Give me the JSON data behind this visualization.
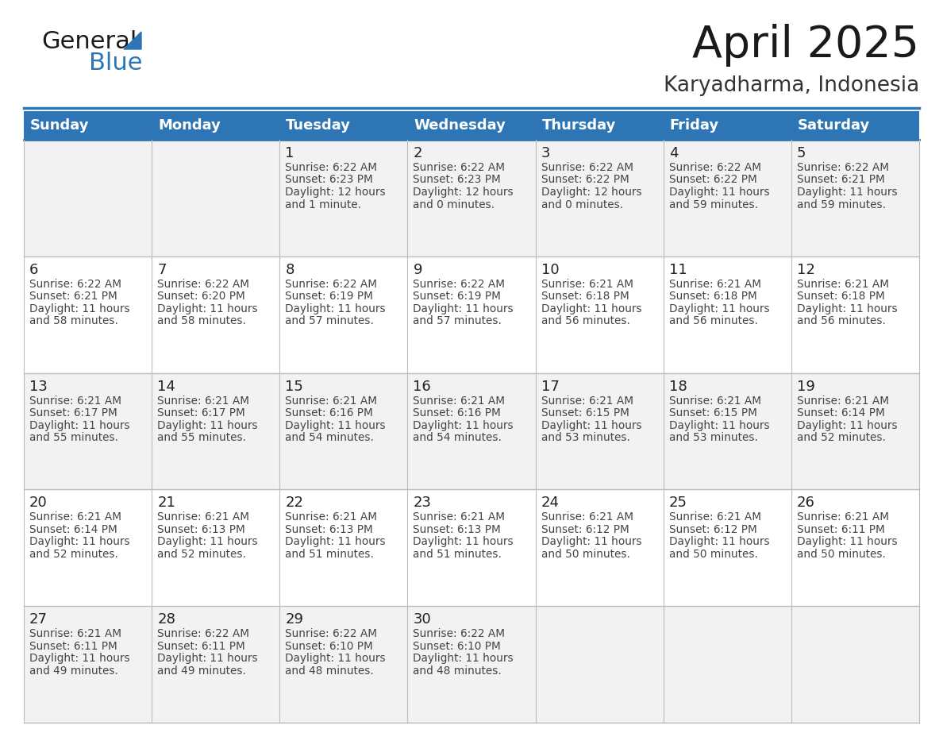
{
  "title": "April 2025",
  "subtitle": "Karyadharma, Indonesia",
  "header_bg_color": "#2E75B6",
  "header_text_color": "#FFFFFF",
  "day_names": [
    "Sunday",
    "Monday",
    "Tuesday",
    "Wednesday",
    "Thursday",
    "Friday",
    "Saturday"
  ],
  "row_odd_bg": "#F2F2F2",
  "row_even_bg": "#FFFFFF",
  "border_color": "#2E75B6",
  "cell_border_color": "#BBBBBB",
  "date_color": "#222222",
  "text_color": "#444444",
  "days": [
    {
      "day": 1,
      "col": 2,
      "row": 0,
      "sunrise": "6:22 AM",
      "sunset": "6:23 PM",
      "daylight": "12 hours",
      "daylight2": "and 1 minute."
    },
    {
      "day": 2,
      "col": 3,
      "row": 0,
      "sunrise": "6:22 AM",
      "sunset": "6:23 PM",
      "daylight": "12 hours",
      "daylight2": "and 0 minutes."
    },
    {
      "day": 3,
      "col": 4,
      "row": 0,
      "sunrise": "6:22 AM",
      "sunset": "6:22 PM",
      "daylight": "12 hours",
      "daylight2": "and 0 minutes."
    },
    {
      "day": 4,
      "col": 5,
      "row": 0,
      "sunrise": "6:22 AM",
      "sunset": "6:22 PM",
      "daylight": "11 hours",
      "daylight2": "and 59 minutes."
    },
    {
      "day": 5,
      "col": 6,
      "row": 0,
      "sunrise": "6:22 AM",
      "sunset": "6:21 PM",
      "daylight": "11 hours",
      "daylight2": "and 59 minutes."
    },
    {
      "day": 6,
      "col": 0,
      "row": 1,
      "sunrise": "6:22 AM",
      "sunset": "6:21 PM",
      "daylight": "11 hours",
      "daylight2": "and 58 minutes."
    },
    {
      "day": 7,
      "col": 1,
      "row": 1,
      "sunrise": "6:22 AM",
      "sunset": "6:20 PM",
      "daylight": "11 hours",
      "daylight2": "and 58 minutes."
    },
    {
      "day": 8,
      "col": 2,
      "row": 1,
      "sunrise": "6:22 AM",
      "sunset": "6:19 PM",
      "daylight": "11 hours",
      "daylight2": "and 57 minutes."
    },
    {
      "day": 9,
      "col": 3,
      "row": 1,
      "sunrise": "6:22 AM",
      "sunset": "6:19 PM",
      "daylight": "11 hours",
      "daylight2": "and 57 minutes."
    },
    {
      "day": 10,
      "col": 4,
      "row": 1,
      "sunrise": "6:21 AM",
      "sunset": "6:18 PM",
      "daylight": "11 hours",
      "daylight2": "and 56 minutes."
    },
    {
      "day": 11,
      "col": 5,
      "row": 1,
      "sunrise": "6:21 AM",
      "sunset": "6:18 PM",
      "daylight": "11 hours",
      "daylight2": "and 56 minutes."
    },
    {
      "day": 12,
      "col": 6,
      "row": 1,
      "sunrise": "6:21 AM",
      "sunset": "6:18 PM",
      "daylight": "11 hours",
      "daylight2": "and 56 minutes."
    },
    {
      "day": 13,
      "col": 0,
      "row": 2,
      "sunrise": "6:21 AM",
      "sunset": "6:17 PM",
      "daylight": "11 hours",
      "daylight2": "and 55 minutes."
    },
    {
      "day": 14,
      "col": 1,
      "row": 2,
      "sunrise": "6:21 AM",
      "sunset": "6:17 PM",
      "daylight": "11 hours",
      "daylight2": "and 55 minutes."
    },
    {
      "day": 15,
      "col": 2,
      "row": 2,
      "sunrise": "6:21 AM",
      "sunset": "6:16 PM",
      "daylight": "11 hours",
      "daylight2": "and 54 minutes."
    },
    {
      "day": 16,
      "col": 3,
      "row": 2,
      "sunrise": "6:21 AM",
      "sunset": "6:16 PM",
      "daylight": "11 hours",
      "daylight2": "and 54 minutes."
    },
    {
      "day": 17,
      "col": 4,
      "row": 2,
      "sunrise": "6:21 AM",
      "sunset": "6:15 PM",
      "daylight": "11 hours",
      "daylight2": "and 53 minutes."
    },
    {
      "day": 18,
      "col": 5,
      "row": 2,
      "sunrise": "6:21 AM",
      "sunset": "6:15 PM",
      "daylight": "11 hours",
      "daylight2": "and 53 minutes."
    },
    {
      "day": 19,
      "col": 6,
      "row": 2,
      "sunrise": "6:21 AM",
      "sunset": "6:14 PM",
      "daylight": "11 hours",
      "daylight2": "and 52 minutes."
    },
    {
      "day": 20,
      "col": 0,
      "row": 3,
      "sunrise": "6:21 AM",
      "sunset": "6:14 PM",
      "daylight": "11 hours",
      "daylight2": "and 52 minutes."
    },
    {
      "day": 21,
      "col": 1,
      "row": 3,
      "sunrise": "6:21 AM",
      "sunset": "6:13 PM",
      "daylight": "11 hours",
      "daylight2": "and 52 minutes."
    },
    {
      "day": 22,
      "col": 2,
      "row": 3,
      "sunrise": "6:21 AM",
      "sunset": "6:13 PM",
      "daylight": "11 hours",
      "daylight2": "and 51 minutes."
    },
    {
      "day": 23,
      "col": 3,
      "row": 3,
      "sunrise": "6:21 AM",
      "sunset": "6:13 PM",
      "daylight": "11 hours",
      "daylight2": "and 51 minutes."
    },
    {
      "day": 24,
      "col": 4,
      "row": 3,
      "sunrise": "6:21 AM",
      "sunset": "6:12 PM",
      "daylight": "11 hours",
      "daylight2": "and 50 minutes."
    },
    {
      "day": 25,
      "col": 5,
      "row": 3,
      "sunrise": "6:21 AM",
      "sunset": "6:12 PM",
      "daylight": "11 hours",
      "daylight2": "and 50 minutes."
    },
    {
      "day": 26,
      "col": 6,
      "row": 3,
      "sunrise": "6:21 AM",
      "sunset": "6:11 PM",
      "daylight": "11 hours",
      "daylight2": "and 50 minutes."
    },
    {
      "day": 27,
      "col": 0,
      "row": 4,
      "sunrise": "6:21 AM",
      "sunset": "6:11 PM",
      "daylight": "11 hours",
      "daylight2": "and 49 minutes."
    },
    {
      "day": 28,
      "col": 1,
      "row": 4,
      "sunrise": "6:22 AM",
      "sunset": "6:11 PM",
      "daylight": "11 hours",
      "daylight2": "and 49 minutes."
    },
    {
      "day": 29,
      "col": 2,
      "row": 4,
      "sunrise": "6:22 AM",
      "sunset": "6:10 PM",
      "daylight": "11 hours",
      "daylight2": "and 48 minutes."
    },
    {
      "day": 30,
      "col": 3,
      "row": 4,
      "sunrise": "6:22 AM",
      "sunset": "6:10 PM",
      "daylight": "11 hours",
      "daylight2": "and 48 minutes."
    }
  ]
}
